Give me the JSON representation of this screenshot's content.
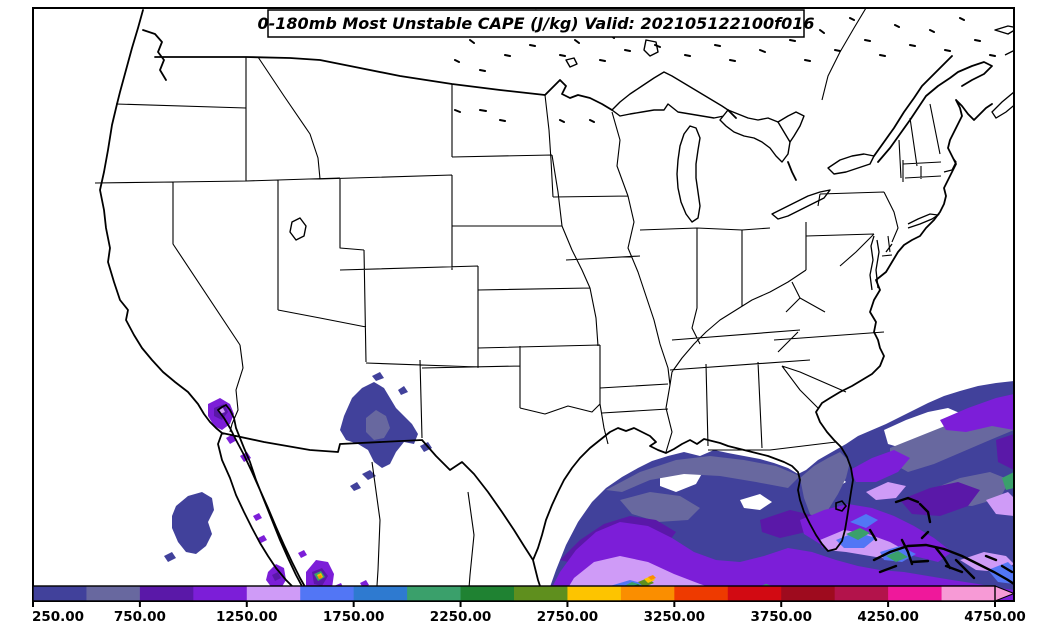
{
  "title": {
    "text": "0-180mb Most Unstable CAPE (J/kg) Valid: 202105122100f016"
  },
  "colorbar": {
    "units": "J/kg",
    "min": 250,
    "max": 4750,
    "band_interval": 250,
    "tick_values": [
      250,
      750,
      1250,
      1750,
      2250,
      2750,
      3250,
      3750,
      4250,
      4750
    ],
    "tick_labels": [
      "250.00",
      "750.00",
      "1250.00",
      "1750.00",
      "2250.00",
      "2750.00",
      "3250.00",
      "3750.00",
      "4250.00",
      "4750.00"
    ],
    "band_colors": [
      "#41419b",
      "#68689f",
      "#5a18a8",
      "#7c1ed8",
      "#cf9bf7",
      "#5276f5",
      "#2e7ad0",
      "#3aa06b",
      "#1f8232",
      "#5f8f1e",
      "#fdc400",
      "#fa8e00",
      "#ee3a00",
      "#d20a12",
      "#9e0b1e",
      "#b3134b",
      "#ef189b",
      "#f79ad6"
    ],
    "over_color": "#f79ad6"
  },
  "map_overlay": {
    "field": "Most Unstable CAPE 0-180mb",
    "regions": [
      {
        "name": "Gulf of Mexico / Florida / western Atlantic",
        "cape_jkg": "250-1500, locally 1500-3000 near Bahamas and Bay of Campeche"
      },
      {
        "name": "eastern New Mexico / west Texas",
        "cape_jkg": "250-750"
      },
      {
        "name": "Pacific waters west of Baja California",
        "cape_jkg": "250-500"
      },
      {
        "name": "head of Gulf of California",
        "cape_jkg": "750-1500"
      },
      {
        "name": "Sierra Madre Occidental (Mexico)",
        "cape_jkg": "750-3250 isolated spots"
      }
    ]
  }
}
